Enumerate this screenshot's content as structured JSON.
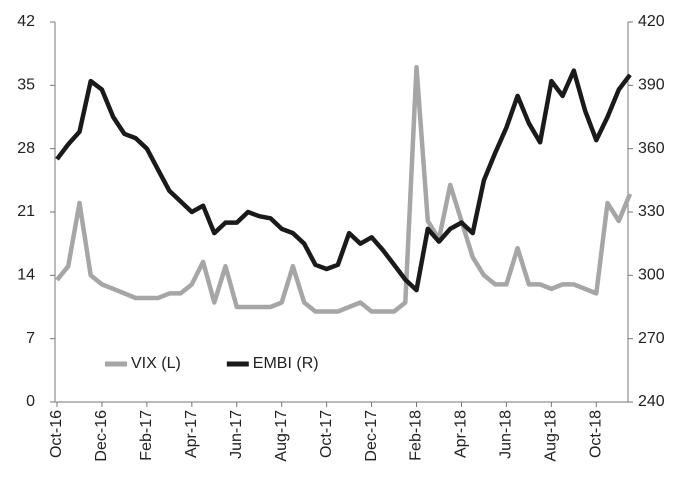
{
  "chart_data": {
    "type": "line",
    "categories": [
      "Oct-16",
      null,
      null,
      null,
      "Dec-16",
      null,
      null,
      null,
      "Feb-17",
      null,
      null,
      null,
      "Apr-17",
      null,
      null,
      null,
      "Jun-17",
      null,
      null,
      null,
      "Aug-17",
      null,
      null,
      null,
      "Oct-17",
      null,
      null,
      null,
      "Dec-17",
      null,
      null,
      null,
      "Feb-18",
      null,
      null,
      null,
      "Apr-18",
      null,
      null,
      null,
      "Jun-18",
      null,
      null,
      null,
      "Aug-18",
      null,
      null,
      null,
      "Oct-18",
      null,
      null,
      null
    ],
    "series": [
      {
        "name": "VIX (L)",
        "color": "#a6a6a6",
        "axis": "y",
        "values": [
          13.5,
          15,
          22,
          14,
          13,
          12.5,
          12,
          11.5,
          11.5,
          11.5,
          12,
          12,
          13,
          15.5,
          11,
          15,
          10.5,
          10.5,
          10.5,
          10.5,
          11,
          15,
          11,
          10,
          10,
          10,
          10.5,
          11,
          10,
          10,
          10,
          11,
          37,
          20,
          18,
          24,
          20,
          16,
          14,
          13,
          13,
          17,
          13,
          13,
          12.5,
          13,
          13,
          12.5,
          12,
          22,
          20,
          23
        ]
      },
      {
        "name": "EMBI (R)",
        "color": "#1a1a1a",
        "axis": "y2",
        "values": [
          355,
          362,
          368,
          392,
          388,
          375,
          367,
          365,
          360,
          350,
          340,
          335,
          330,
          333,
          320,
          325,
          325,
          330,
          328,
          327,
          322,
          320,
          315,
          305,
          303,
          305,
          320,
          315,
          318,
          312,
          305,
          298,
          293,
          322,
          316,
          322,
          325,
          320,
          345,
          358,
          370,
          385,
          372,
          363,
          392,
          385,
          397,
          378,
          364,
          375,
          388,
          395
        ]
      }
    ],
    "ylim": [
      0,
      42
    ],
    "yticks": [
      0,
      7,
      14,
      21,
      28,
      35,
      42
    ],
    "y2lim": [
      240,
      420
    ],
    "y2ticks": [
      240,
      270,
      300,
      330,
      360,
      390,
      420
    ],
    "grid": false,
    "legend": "lower left"
  }
}
